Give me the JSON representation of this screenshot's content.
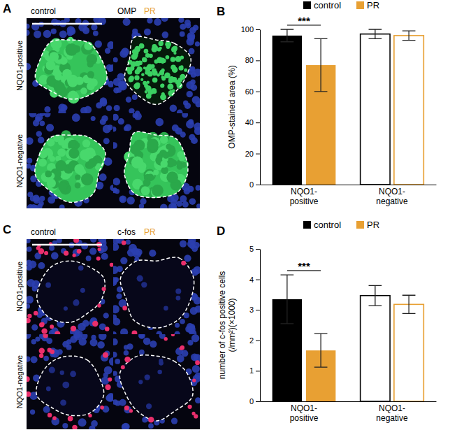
{
  "chart_data": [
    {
      "type": "bar",
      "title": "B",
      "ylabel": "OMP-stained area (%)",
      "categories": [
        "NQO1-positive",
        "NQO1-negative"
      ],
      "series": [
        {
          "name": "control",
          "color": "#000000",
          "values": [
            96,
            97
          ],
          "errors": [
            4,
            3
          ]
        },
        {
          "name": "PR",
          "color": "#e8a033",
          "values": [
            77,
            96
          ],
          "errors": [
            17,
            3
          ]
        }
      ],
      "ylim": [
        0,
        100
      ],
      "yticks": [
        0,
        20,
        40,
        60,
        80,
        100
      ],
      "legend": "top",
      "annotations": [
        {
          "text": "***",
          "category": "NQO1-positive"
        }
      ]
    },
    {
      "type": "bar",
      "title": "D",
      "ylabel": [
        "number of c-fos positive cells",
        "(/mm²)(×1000)"
      ],
      "categories": [
        "NQO1-positive",
        "NQO1-negative"
      ],
      "series": [
        {
          "name": "control",
          "color": "#000000",
          "values": [
            3.35,
            3.47
          ],
          "errors": [
            0.8,
            0.33
          ]
        },
        {
          "name": "PR",
          "color": "#e8a033",
          "values": [
            1.67,
            3.18
          ],
          "errors": [
            0.55,
            0.3
          ]
        }
      ],
      "ylim": [
        0,
        5
      ],
      "yticks": [
        0,
        1,
        2,
        3,
        4,
        5
      ],
      "legend": "top",
      "annotations": [
        {
          "text": "***",
          "category": "NQO1-positive"
        }
      ]
    }
  ],
  "images": [
    {
      "panel": "A",
      "stain": "OMP",
      "columns": [
        "control",
        "PR"
      ],
      "colors": [
        "#000000",
        "#e8a033"
      ],
      "rows": [
        "NQO1-positive",
        "NQO1-negative"
      ]
    },
    {
      "panel": "C",
      "stain": "c-fos",
      "columns": [
        "control",
        "PR"
      ],
      "colors": [
        "#000000",
        "#e8a033"
      ],
      "rows": [
        "NQO1-positive",
        "NQO1-negative"
      ]
    }
  ]
}
